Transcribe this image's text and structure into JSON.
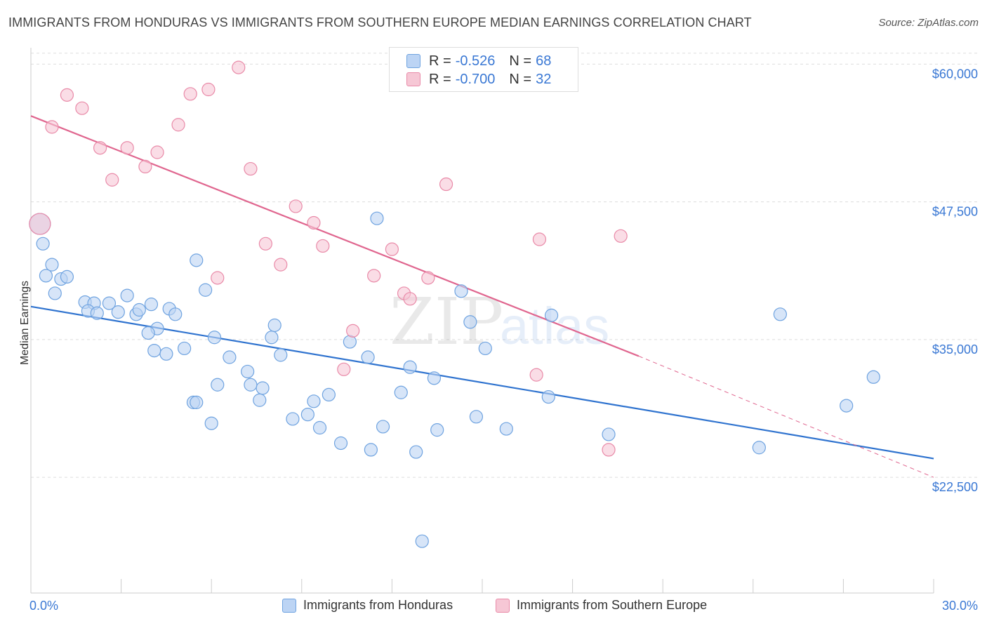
{
  "title": "IMMIGRANTS FROM HONDURAS VS IMMIGRANTS FROM SOUTHERN EUROPE MEDIAN EARNINGS CORRELATION CHART",
  "source": "Source: ZipAtlas.com",
  "watermark": {
    "zip": "ZIP",
    "atlas": "atlas"
  },
  "colors": {
    "blue": "#6fa3e0",
    "blue_fill": "#bcd4f4",
    "pink": "#e98aa8",
    "pink_fill": "#f6c7d5",
    "blue_line": "#2f73cf",
    "pink_line": "#e0668f",
    "axis_text": "#3a78d4"
  },
  "legend": {
    "rows": [
      {
        "r_label": "R =",
        "r_value": "-0.526",
        "n_label": "N =",
        "n_value": "68"
      },
      {
        "r_label": "R =",
        "r_value": "-0.700",
        "n_label": "N =",
        "n_value": "32"
      }
    ]
  },
  "bottom_legend": {
    "series1": "Immigrants from Honduras",
    "series2": "Immigrants from Southern Europe"
  },
  "chart_data": {
    "type": "scatter",
    "title": "IMMIGRANTS FROM HONDURAS VS IMMIGRANTS FROM SOUTHERN EUROPE MEDIAN EARNINGS CORRELATION CHART",
    "xlabel": "",
    "ylabel": "Median Earnings",
    "xlim": [
      0,
      30
    ],
    "ylim": [
      12000,
      62000
    ],
    "x_tick_labels": [
      {
        "value": 0,
        "label": "0.0%"
      },
      {
        "value": 30,
        "label": "30.0%"
      }
    ],
    "y_ticks": [
      {
        "value": 22500,
        "label": "$22,500"
      },
      {
        "value": 35000,
        "label": "$35,000"
      },
      {
        "value": 47500,
        "label": "$47,500"
      },
      {
        "value": 60000,
        "label": "$60,000"
      }
    ],
    "series": [
      {
        "name": "Immigrants from Honduras",
        "trend": {
          "x": [
            0,
            30
          ],
          "y": [
            38000,
            24200
          ],
          "dashed_to": null
        },
        "points": [
          [
            0.3,
            45500
          ],
          [
            0.4,
            43700
          ],
          [
            0.5,
            40800
          ],
          [
            0.7,
            41800
          ],
          [
            1.0,
            40500
          ],
          [
            1.2,
            40700
          ],
          [
            0.8,
            39200
          ],
          [
            1.8,
            38400
          ],
          [
            2.1,
            38300
          ],
          [
            1.9,
            37600
          ],
          [
            2.2,
            37400
          ],
          [
            2.6,
            38300
          ],
          [
            2.9,
            37500
          ],
          [
            3.2,
            39000
          ],
          [
            3.5,
            37300
          ],
          [
            3.6,
            37700
          ],
          [
            4.0,
            38200
          ],
          [
            4.2,
            36000
          ],
          [
            3.9,
            35600
          ],
          [
            4.6,
            37800
          ],
          [
            4.8,
            37300
          ],
          [
            5.1,
            34200
          ],
          [
            5.5,
            42200
          ],
          [
            5.8,
            39500
          ],
          [
            6.1,
            35200
          ],
          [
            6.6,
            33400
          ],
          [
            7.2,
            32100
          ],
          [
            7.7,
            30600
          ],
          [
            7.3,
            30900
          ],
          [
            7.6,
            29500
          ],
          [
            8.0,
            35200
          ],
          [
            8.1,
            36300
          ],
          [
            8.3,
            33600
          ],
          [
            5.4,
            29300
          ],
          [
            4.5,
            33700
          ],
          [
            6.0,
            27400
          ],
          [
            5.5,
            29300
          ],
          [
            8.7,
            27800
          ],
          [
            9.2,
            28200
          ],
          [
            9.6,
            27000
          ],
          [
            9.4,
            29400
          ],
          [
            9.9,
            30000
          ],
          [
            10.3,
            25600
          ],
          [
            10.6,
            34800
          ],
          [
            11.3,
            25000
          ],
          [
            11.2,
            33400
          ],
          [
            11.7,
            27100
          ],
          [
            11.5,
            46000
          ],
          [
            12.3,
            30200
          ],
          [
            12.6,
            32500
          ],
          [
            12.8,
            24800
          ],
          [
            13.4,
            31500
          ],
          [
            13.5,
            26800
          ],
          [
            14.3,
            39400
          ],
          [
            14.6,
            36600
          ],
          [
            14.8,
            28000
          ],
          [
            15.1,
            34200
          ],
          [
            15.8,
            26900
          ],
          [
            17.2,
            29800
          ],
          [
            17.3,
            37200
          ],
          [
            19.2,
            26400
          ],
          [
            24.2,
            25200
          ],
          [
            24.9,
            37300
          ],
          [
            27.1,
            29000
          ],
          [
            28.0,
            31600
          ],
          [
            13.0,
            16700
          ],
          [
            6.2,
            30900
          ],
          [
            4.1,
            34000
          ]
        ]
      },
      {
        "name": "Immigrants from Southern Europe",
        "trend": {
          "x": [
            0,
            20.2
          ],
          "y": [
            55300,
            33500
          ],
          "dashed_to": {
            "x": 30,
            "y": 22500
          }
        },
        "points": [
          [
            0.3,
            45500
          ],
          [
            1.2,
            57200
          ],
          [
            0.7,
            54300
          ],
          [
            1.7,
            56000
          ],
          [
            2.3,
            52400
          ],
          [
            2.7,
            49500
          ],
          [
            3.2,
            52400
          ],
          [
            3.8,
            50700
          ],
          [
            4.2,
            52000
          ],
          [
            4.9,
            54500
          ],
          [
            5.3,
            57300
          ],
          [
            5.9,
            57700
          ],
          [
            6.2,
            40600
          ],
          [
            6.9,
            59700
          ],
          [
            7.3,
            50500
          ],
          [
            7.8,
            43700
          ],
          [
            8.3,
            41800
          ],
          [
            8.8,
            47100
          ],
          [
            9.4,
            45600
          ],
          [
            9.7,
            43500
          ],
          [
            10.4,
            32300
          ],
          [
            10.7,
            35800
          ],
          [
            11.4,
            40800
          ],
          [
            12.0,
            43200
          ],
          [
            12.4,
            39200
          ],
          [
            12.6,
            38700
          ],
          [
            13.2,
            40600
          ],
          [
            13.8,
            49100
          ],
          [
            16.8,
            31800
          ],
          [
            16.9,
            44100
          ],
          [
            19.6,
            44400
          ],
          [
            19.2,
            25000
          ]
        ]
      }
    ]
  }
}
